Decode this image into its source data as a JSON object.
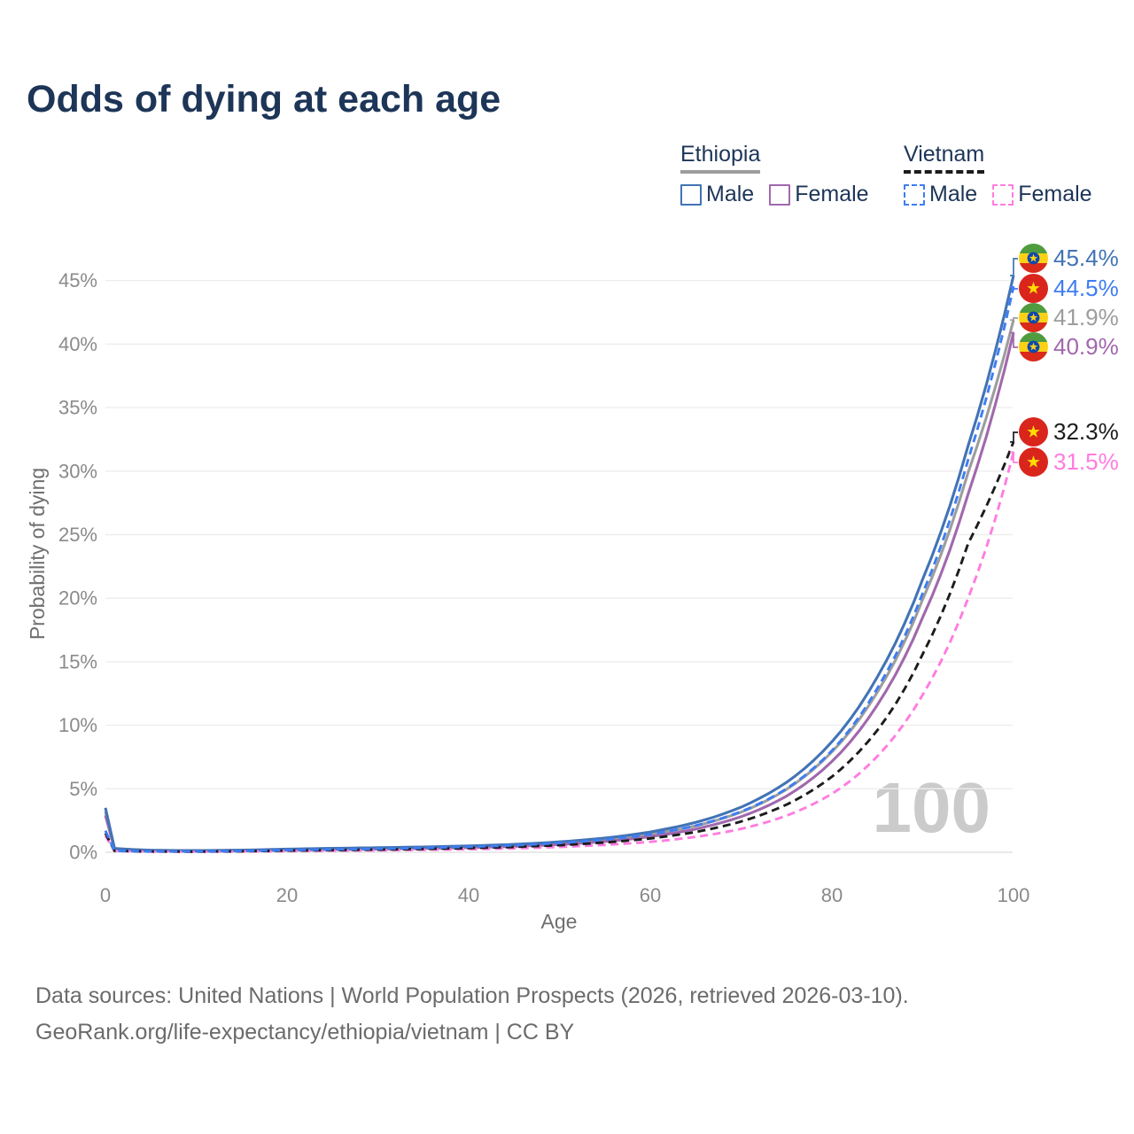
{
  "title": "Odds of dying at each age",
  "watermark": "100",
  "legend": {
    "groups": [
      {
        "title": "Ethiopia",
        "line_style": "solid",
        "underline_color": "#9d9d9d",
        "items": [
          {
            "label": "Male",
            "series": "ethiopia-male"
          },
          {
            "label": "Female",
            "series": "ethiopia-female"
          }
        ]
      },
      {
        "title": "Vietnam",
        "line_style": "dashed",
        "underline_color": "#1c1c1c",
        "items": [
          {
            "label": "Male",
            "series": "vietnam-male"
          },
          {
            "label": "Female",
            "series": "vietnam-female"
          }
        ]
      }
    ]
  },
  "chart_data": {
    "type": "line",
    "title": "Odds of dying at each age",
    "xlabel": "Age",
    "ylabel": "Probability of dying",
    "xlim": [
      0,
      100
    ],
    "ylim": [
      0,
      47
    ],
    "grid": true,
    "legend_position": "top-right",
    "x_ticks": [
      {
        "label": "0",
        "value": 0
      },
      {
        "label": "20",
        "value": 20
      },
      {
        "label": "40",
        "value": 40
      },
      {
        "label": "60",
        "value": 60
      },
      {
        "label": "80",
        "value": 80
      },
      {
        "label": "100",
        "value": 100
      }
    ],
    "y_ticks": [
      {
        "label": "0%",
        "value": 0
      },
      {
        "label": "5%",
        "value": 5
      },
      {
        "label": "10%",
        "value": 10
      },
      {
        "label": "15%",
        "value": 15
      },
      {
        "label": "20%",
        "value": 20
      },
      {
        "label": "25%",
        "value": 25
      },
      {
        "label": "30%",
        "value": 30
      },
      {
        "label": "35%",
        "value": 35
      },
      {
        "label": "40%",
        "value": 40
      },
      {
        "label": "45%",
        "value": 45
      }
    ],
    "x": [
      0,
      1,
      5,
      10,
      15,
      20,
      25,
      30,
      35,
      40,
      45,
      50,
      55,
      60,
      65,
      70,
      75,
      80,
      85,
      90,
      95,
      100
    ],
    "series": [
      {
        "id": "ethiopia-male",
        "country": "Ethiopia",
        "sex": "Male",
        "color": "#4273b5",
        "dash": "solid",
        "end_label": "45.4%",
        "values": [
          3.5,
          0.3,
          0.16,
          0.13,
          0.17,
          0.25,
          0.31,
          0.36,
          0.42,
          0.5,
          0.62,
          0.82,
          1.12,
          1.6,
          2.35,
          3.55,
          5.5,
          8.7,
          13.8,
          21.5,
          32.0,
          45.4
        ]
      },
      {
        "id": "ethiopia-female",
        "country": "Ethiopia",
        "sex": "Female",
        "color": "#a168ad",
        "dash": "solid",
        "end_label": "40.9%",
        "values": [
          2.9,
          0.26,
          0.14,
          0.11,
          0.13,
          0.17,
          0.21,
          0.25,
          0.3,
          0.37,
          0.46,
          0.61,
          0.85,
          1.23,
          1.83,
          2.8,
          4.42,
          7.15,
          11.6,
          18.5,
          28.2,
          40.9
        ]
      },
      {
        "id": "ethiopia-both",
        "country": "Ethiopia",
        "sex": "Both sexes",
        "color": "#9d9d9d",
        "dash": "solid",
        "end_label": "41.9%",
        "values": [
          3.2,
          0.28,
          0.15,
          0.12,
          0.15,
          0.21,
          0.26,
          0.31,
          0.36,
          0.43,
          0.54,
          0.71,
          0.98,
          1.41,
          2.08,
          3.16,
          4.95,
          7.9,
          12.6,
          19.9,
          29.9,
          41.9
        ]
      },
      {
        "id": "vietnam-male",
        "country": "Vietnam",
        "sex": "Male",
        "color": "#3e7df2",
        "dash": "dashed",
        "end_label": "44.5%",
        "values": [
          1.7,
          0.12,
          0.07,
          0.06,
          0.1,
          0.17,
          0.22,
          0.27,
          0.34,
          0.43,
          0.55,
          0.73,
          1.0,
          1.42,
          2.1,
          3.2,
          5.0,
          8.0,
          12.9,
          20.4,
          30.9,
          44.5
        ]
      },
      {
        "id": "vietnam-female",
        "country": "Vietnam",
        "sex": "Female",
        "color": "#ff7ce0",
        "dash": "dashed",
        "end_label": "31.5%",
        "values": [
          1.3,
          0.1,
          0.05,
          0.04,
          0.06,
          0.09,
          0.12,
          0.15,
          0.19,
          0.24,
          0.31,
          0.42,
          0.58,
          0.82,
          1.21,
          1.84,
          2.88,
          4.6,
          7.55,
          12.4,
          20.0,
          31.5
        ]
      },
      {
        "id": "vietnam-both",
        "country": "Vietnam",
        "sex": "Both sexes",
        "color": "#1c1c1c",
        "dash": "dashed",
        "end_label": "32.3%",
        "values": [
          1.5,
          0.11,
          0.06,
          0.05,
          0.08,
          0.13,
          0.17,
          0.21,
          0.26,
          0.33,
          0.42,
          0.56,
          0.77,
          1.09,
          1.6,
          2.42,
          3.75,
          5.95,
          9.6,
          15.6,
          24.3,
          32.3
        ]
      }
    ]
  },
  "end_labels": [
    {
      "value": "45.4%",
      "series": "ethiopia-male",
      "flag": "ethiopia"
    },
    {
      "value": "44.5%",
      "series": "vietnam-male",
      "flag": "vietnam"
    },
    {
      "value": "41.9%",
      "series": "ethiopia-both",
      "flag": "ethiopia"
    },
    {
      "value": "40.9%",
      "series": "ethiopia-female",
      "flag": "ethiopia"
    },
    {
      "value": "32.3%",
      "series": "vietnam-both",
      "flag": "vietnam"
    },
    {
      "value": "31.5%",
      "series": "vietnam-female",
      "flag": "vietnam"
    }
  ],
  "footer": {
    "line1": "Data sources: United Nations | World Population Prospects (2026, retrieved 2026-03-10).",
    "line2": "GeoRank.org/life-expectancy/ethiopia/vietnam | CC BY"
  }
}
